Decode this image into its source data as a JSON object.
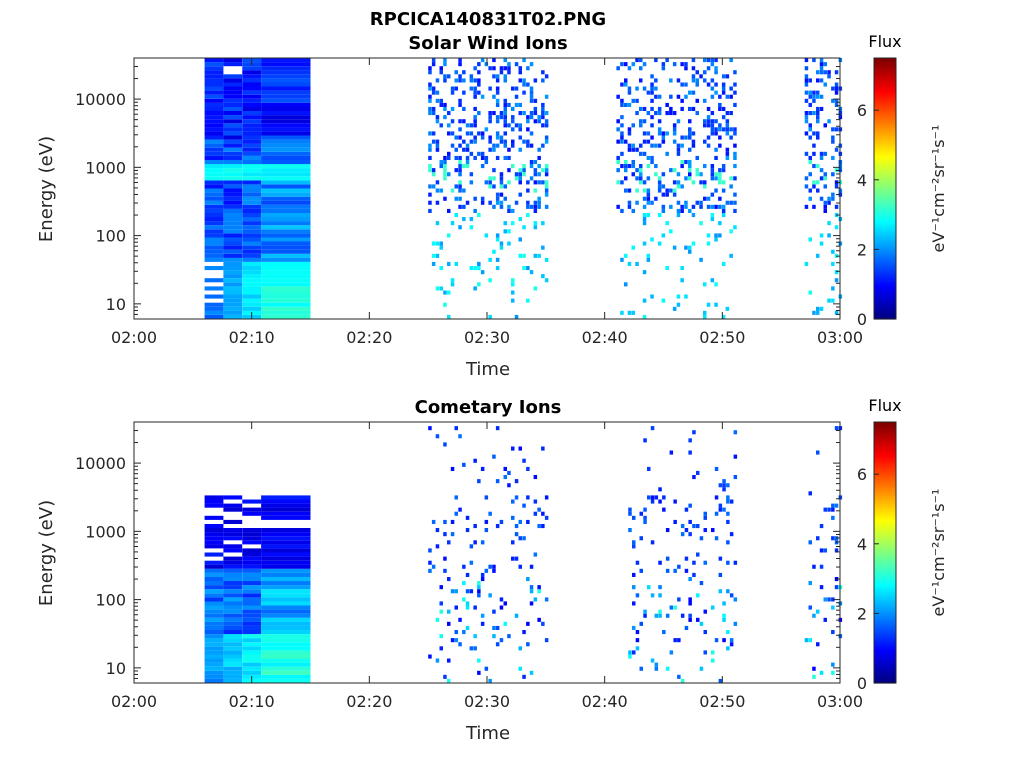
{
  "figure_title": "RPCICA140831T02.PNG",
  "colorbar": {
    "title": "Flux",
    "label": "eV⁻¹cm⁻²sr⁻¹s⁻¹",
    "range": [
      0,
      7.5
    ],
    "ticks": [
      "0",
      "2",
      "4",
      "6"
    ],
    "tick_values": [
      0,
      2,
      4,
      6
    ],
    "colormap": "jet"
  },
  "chart_data": [
    {
      "type": "heatmap",
      "title": "Solar Wind Ions",
      "xlabel": "Time",
      "ylabel": "Energy (eV)",
      "y_scale": "log",
      "xlim": [
        "02:00",
        "03:00"
      ],
      "ylim": [
        6,
        40000
      ],
      "x_ticks": [
        "02:00",
        "02:10",
        "02:20",
        "02:30",
        "02:40",
        "02:50",
        "03:00"
      ],
      "y_ticks": [
        "10",
        "100",
        "1000",
        "10000"
      ],
      "y_tick_values": [
        10,
        100,
        1000,
        10000
      ],
      "dense_block": {
        "start": "02:06",
        "end": "02:15"
      },
      "sparse_intervals": [
        {
          "start": "02:25",
          "end": "02:35"
        },
        {
          "start": "02:41",
          "end": "02:51"
        },
        {
          "start": "02:57",
          "end": "03:00"
        }
      ],
      "peak_energy_eV": 800
    },
    {
      "type": "heatmap",
      "title": "Cometary Ions",
      "xlabel": "Time",
      "ylabel": "Energy (eV)",
      "y_scale": "log",
      "xlim": [
        "02:00",
        "03:00"
      ],
      "ylim": [
        6,
        40000
      ],
      "x_ticks": [
        "02:00",
        "02:10",
        "02:20",
        "02:30",
        "02:40",
        "02:50",
        "03:00"
      ],
      "y_ticks": [
        "10",
        "100",
        "1000",
        "10000"
      ],
      "y_tick_values": [
        10,
        100,
        1000,
        10000
      ],
      "dense_block": {
        "start": "02:06",
        "end": "02:15"
      },
      "sparse_intervals": [
        {
          "start": "02:25",
          "end": "02:35"
        },
        {
          "start": "02:42",
          "end": "02:51"
        },
        {
          "start": "02:57",
          "end": "03:00"
        }
      ]
    }
  ]
}
